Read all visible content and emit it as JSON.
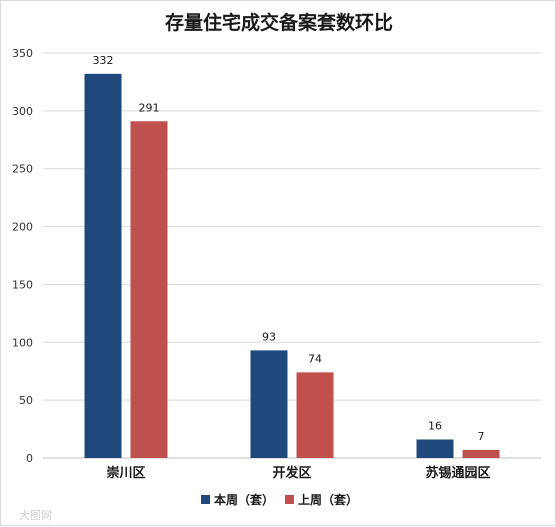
{
  "chart_data": {
    "type": "bar",
    "title": "存量住宅成交备案套数环比",
    "categories": [
      "崇川区",
      "开发区",
      "苏锡通园区"
    ],
    "series": [
      {
        "name": "本周（套）",
        "values": [
          332,
          93,
          16
        ],
        "color": "#1f497d"
      },
      {
        "name": "上周（套）",
        "values": [
          291,
          74,
          7
        ],
        "color": "#c0504d"
      }
    ],
    "ylim": [
      0,
      350
    ],
    "yticks": [
      0,
      50,
      100,
      150,
      200,
      250,
      300,
      350
    ],
    "grid": true,
    "legend_position": "bottom"
  },
  "watermark": "大图网"
}
